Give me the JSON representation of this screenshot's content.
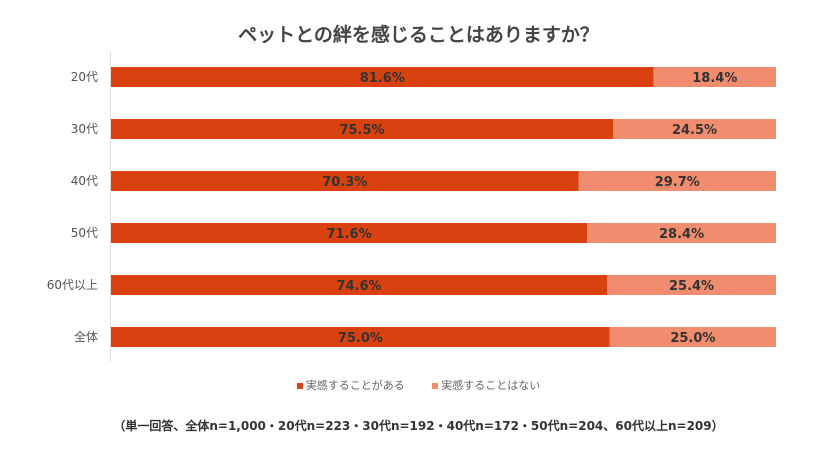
{
  "chart_data": {
    "type": "bar",
    "orientation": "horizontal",
    "stacked": true,
    "title": "ペットとの絆を感じることはありますか？",
    "categories": [
      "20代",
      "30代",
      "40代",
      "50代",
      "60代以上",
      "全体"
    ],
    "series": [
      {
        "name": "実感することがある",
        "color": "#D9420F",
        "values": [
          81.6,
          75.5,
          70.3,
          71.6,
          74.6,
          75.0
        ]
      },
      {
        "name": "実感することはない",
        "color": "#F28C6E",
        "values": [
          18.4,
          24.5,
          29.7,
          28.4,
          25.4,
          25.0
        ]
      }
    ],
    "data_labels": [
      [
        "81.6%",
        "75.5%",
        "70.3%",
        "71.6%",
        "74.6%",
        "75.0%"
      ],
      [
        "18.4%",
        "24.5%",
        "29.7%",
        "28.4%",
        "25.4%",
        "25.0%"
      ]
    ],
    "xlim": [
      0,
      100
    ],
    "grid": false,
    "legend_position": "bottom",
    "note": "（単一回答、全体n=1,000・20代n=223・30代n=192・40代n=172・50代n=204、60代以上n=209）"
  }
}
